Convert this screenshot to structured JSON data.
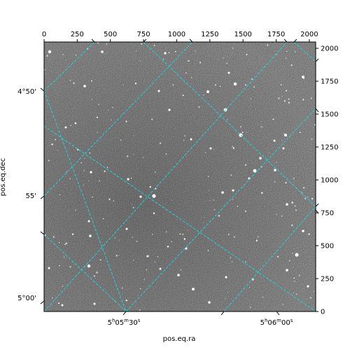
{
  "figure": {
    "xlabel": "pos.eq.ra",
    "ylabel": "pos.eq.dec",
    "colors": {
      "grid": "#22d3d3",
      "frame": "#000000",
      "sky_bg": "#6e6e6e"
    },
    "pixel_axes": {
      "x_range": [
        0,
        2048
      ],
      "y_range": [
        0,
        2048
      ],
      "top_ticks": [
        "0",
        "250",
        "500",
        "750",
        "1000",
        "1250",
        "1500",
        "1750",
        "2000"
      ],
      "right_ticks": [
        "0",
        "250",
        "500",
        "750",
        "1000",
        "1250",
        "1500",
        "1750",
        "2000"
      ]
    },
    "world_axes": {
      "dec_ticks": [
        "4°50'",
        "55'",
        "5°00'"
      ],
      "ra_ticks": [
        {
          "h": "5",
          "m": "05",
          "s": "30"
        },
        {
          "h": "5",
          "m": "06",
          "s": "00"
        }
      ],
      "ra_units": {
        "h": "h",
        "m": "m",
        "s": "s"
      }
    }
  }
}
